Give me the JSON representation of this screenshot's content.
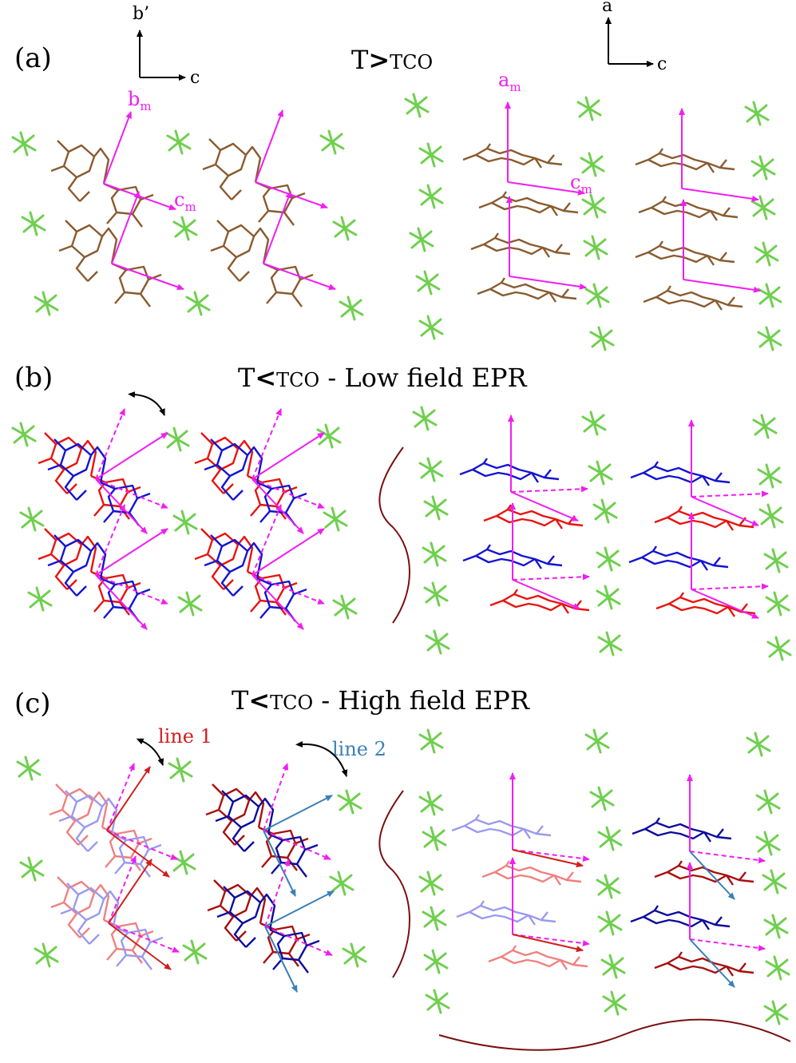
{
  "panels": [
    {
      "label": "(a)",
      "title_main": "T",
      "title_rel": ">",
      "title_sub": "TCO",
      "title_rest": ""
    },
    {
      "label": "(b)",
      "title_main": "T",
      "title_rel": "<",
      "title_sub": "TCO",
      "title_rest": " - Low field EPR"
    },
    {
      "label": "(c)",
      "title_main": "T",
      "title_rel": "<",
      "title_sub": "TCO",
      "title_rest": " - High field EPR"
    }
  ],
  "axes": {
    "left": {
      "vertical": "b’",
      "horizontal": "c"
    },
    "right": {
      "vertical": "a",
      "horizontal": "c"
    }
  },
  "vectors": {
    "b": "b",
    "c": "c",
    "a": "a",
    "sub": "m"
  },
  "lines": {
    "line1": "line 1",
    "line2": "line 2"
  },
  "colors": {
    "anion": "#6fcf4e",
    "molecule_brown": "#8a5a2e",
    "red": "#e8140f",
    "blue": "#1414d2",
    "light_red": "#f08080",
    "light_blue": "#9a9af0",
    "dark_red": "#a80f0f",
    "dark_blue": "#0c0c9e",
    "magenta": "#f01ef0",
    "steel": "#3a80b8",
    "maroon": "#7a0f0f"
  }
}
